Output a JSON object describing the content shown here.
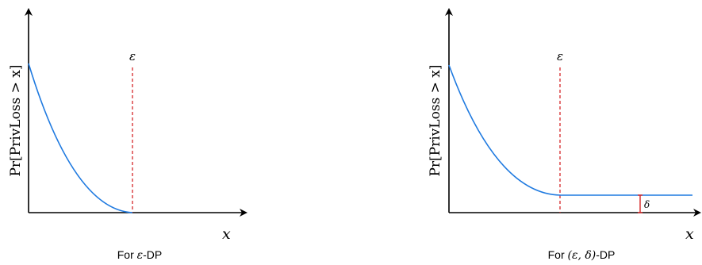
{
  "colors": {
    "axis": "#000000",
    "curve": "#1f7ae0",
    "threshold": "#d62728",
    "background": "#ffffff"
  },
  "left_panel": {
    "ylabel": "Pr[PrivLoss > x]",
    "xlabel": "x",
    "threshold_label": "ε",
    "caption_prefix": "For ",
    "caption_math": "ε",
    "caption_suffix": "-DP"
  },
  "right_panel": {
    "ylabel": "Pr[PrivLoss > x]",
    "xlabel": "x",
    "threshold_label": "ε",
    "delta_label": "δ",
    "caption_prefix": "For ",
    "caption_math": "(ε, δ)",
    "caption_suffix": "-DP"
  }
}
